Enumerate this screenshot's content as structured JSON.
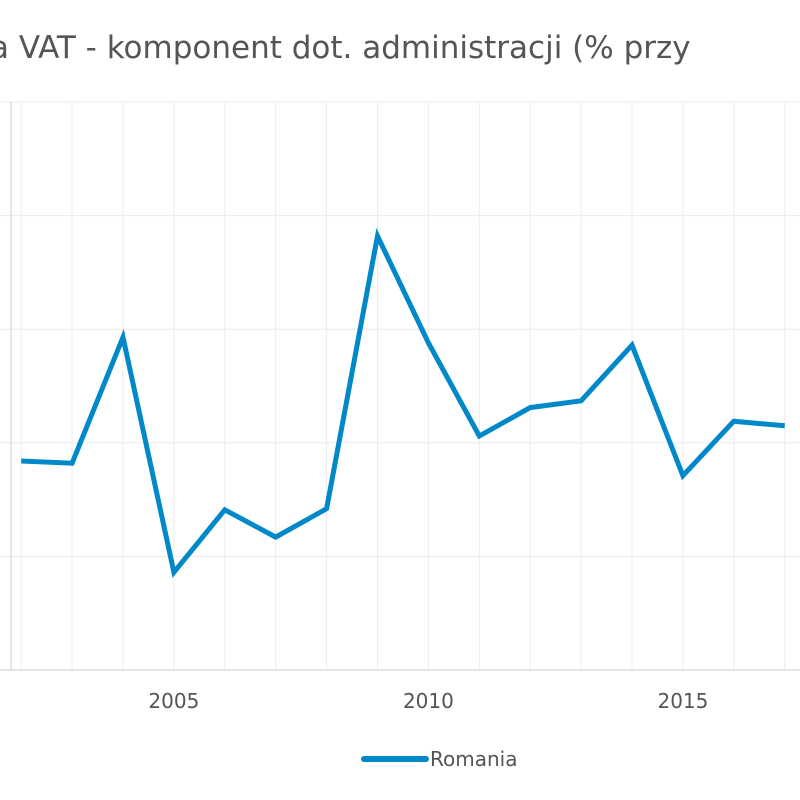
{
  "colors": {
    "series": "#0088c9",
    "grid": "#ececec",
    "axis": "#cccccc",
    "text": "#555555"
  },
  "chart_data": {
    "type": "line",
    "title": "a VAT - komponent dot. administracji (% przy",
    "xlabel": "",
    "ylabel": "",
    "x_tick_labels": [
      "2005",
      "2010",
      "2015"
    ],
    "xlim": [
      2001.8,
      2017.3
    ],
    "ylim": [
      0,
      5
    ],
    "grid": true,
    "legend_position": "bottom-center",
    "series": [
      {
        "name": "Romania",
        "x": [
          2002,
          2003,
          2004,
          2005,
          2006,
          2007,
          2008,
          2009,
          2010,
          2011,
          2012,
          2013,
          2014,
          2015,
          2016,
          2017
        ],
        "y": [
          1.84,
          1.82,
          2.93,
          0.86,
          1.41,
          1.17,
          1.42,
          3.82,
          2.88,
          2.06,
          2.31,
          2.37,
          2.86,
          1.71,
          2.19,
          2.15
        ]
      }
    ]
  }
}
